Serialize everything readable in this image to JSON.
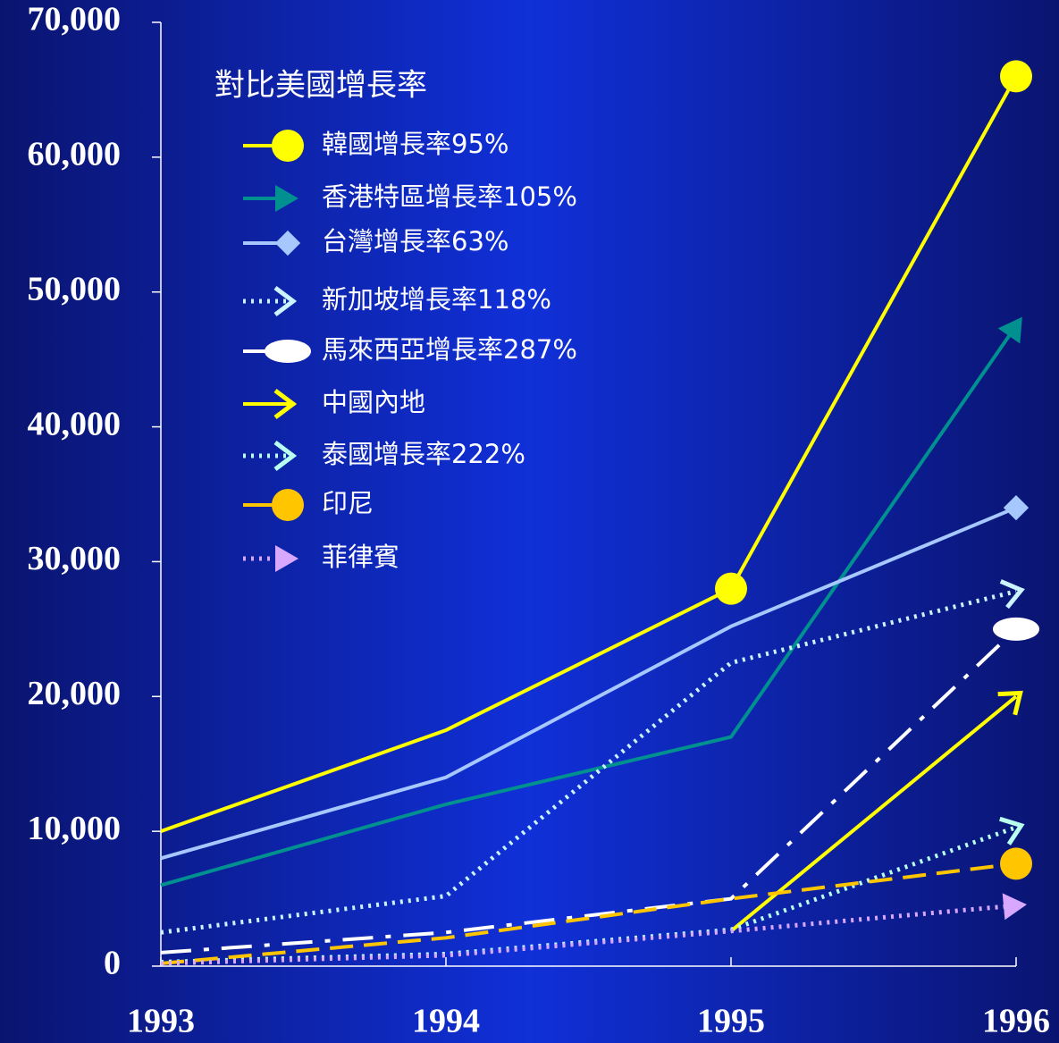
{
  "chart_data": {
    "type": "line",
    "legend_title": "對比美國增長率",
    "categories": [
      "1993",
      "1994",
      "1995",
      "1996"
    ],
    "ylim": [
      0,
      70000
    ],
    "yticks": [
      0,
      {
        "value": 10000,
        "label": "10,000"
      },
      {
        "value": 20000,
        "label": "20,000"
      },
      {
        "value": 30000,
        "label": "30,000"
      },
      {
        "value": 40000,
        "label": "40,000"
      },
      {
        "value": 50000,
        "label": "50,000"
      },
      {
        "value": 60000,
        "label": "60,000"
      },
      {
        "value": 70000,
        "label": "70,000"
      }
    ],
    "legend": "upper left",
    "series": [
      {
        "name": "韓國增長率95%",
        "color": "#ffff00",
        "marker": "circle",
        "dash": "solid",
        "values": [
          10000,
          17500,
          28000,
          66000
        ]
      },
      {
        "name": "香港特區增長率105%",
        "color": "#009090",
        "marker": "triangle",
        "dash": "solid",
        "values": [
          6000,
          12000,
          17000,
          47500
        ]
      },
      {
        "name": "台灣增長率63%",
        "color": "#a6c8ff",
        "marker": "diamond",
        "dash": "solid",
        "values": [
          8000,
          14000,
          25200,
          34000
        ]
      },
      {
        "name": "新加坡增長率118%",
        "color": "#ccf4ff",
        "marker": "chevron",
        "dash": "dotted",
        "values": [
          2500,
          5200,
          22500,
          27800
        ]
      },
      {
        "name": "馬來西亞增長率287%",
        "color": "#ffffff",
        "marker": "ellipse",
        "dash": "dashdot",
        "values": [
          1000,
          2500,
          5000,
          25000
        ]
      },
      {
        "name": "中國內地",
        "color": "#ffff00",
        "marker": "chevron",
        "dash": "solid",
        "values": [
          null,
          null,
          2600,
          20000
        ]
      },
      {
        "name": "泰國增長率222%",
        "color": "#b8ffee",
        "marker": "chevron",
        "dash": "dotted",
        "values": [
          300,
          900,
          2700,
          10300
        ]
      },
      {
        "name": "印尼",
        "color": "#ffc600",
        "marker": "circle",
        "dash": "dashed",
        "values": [
          200,
          2100,
          5000,
          7600
        ]
      },
      {
        "name": "菲律賓",
        "color": "#d8a8ff",
        "marker": "triangle",
        "dash": "dotted",
        "values": [
          200,
          800,
          2600,
          4500
        ]
      }
    ]
  }
}
